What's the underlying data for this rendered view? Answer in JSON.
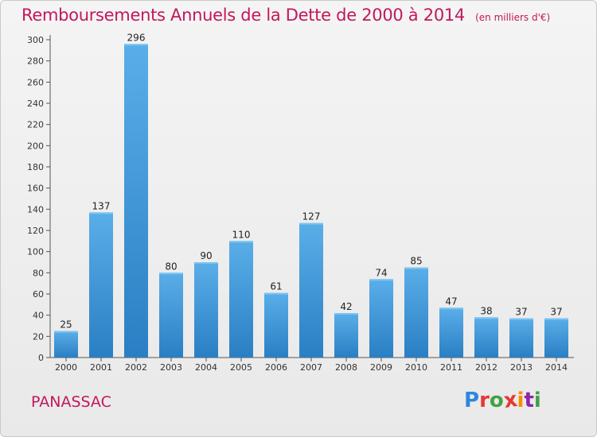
{
  "header": {
    "title": "Remboursements Annuels de la Dette de 2000 à 2014",
    "unit": "(en milliers d'€)"
  },
  "footer": {
    "commune": "PANASSAC",
    "brand_letters": [
      "P",
      "r",
      "o",
      "x",
      "i",
      "t",
      "i"
    ]
  },
  "colors": {
    "title": "#c2185b",
    "bar_top": "#5aaee8",
    "bar_bottom": "#2a7fc4",
    "brand": [
      "#2e86de",
      "#e53935",
      "#43a047",
      "#e53935",
      "#fb8c00",
      "#8e24aa",
      "#43a047"
    ]
  },
  "chart_data": {
    "type": "bar",
    "categories": [
      "2000",
      "2001",
      "2002",
      "2003",
      "2004",
      "2005",
      "2006",
      "2007",
      "2008",
      "2009",
      "2010",
      "2011",
      "2012",
      "2013",
      "2014"
    ],
    "values": [
      25,
      137,
      296,
      80,
      90,
      110,
      61,
      127,
      42,
      74,
      85,
      47,
      38,
      37,
      37
    ],
    "ylim": [
      0,
      300
    ],
    "yticks": [
      0,
      20,
      40,
      60,
      80,
      100,
      120,
      140,
      160,
      180,
      200,
      220,
      240,
      260,
      280,
      300
    ],
    "grid": false,
    "data_labels": true
  }
}
